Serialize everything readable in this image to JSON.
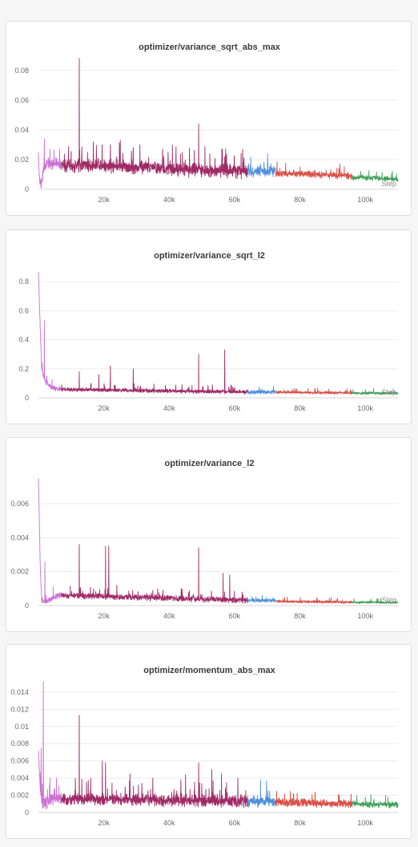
{
  "colors": {
    "run_a": "#cc6fd6",
    "run_b": "#9e2a66",
    "run_c": "#4f8ede",
    "run_d": "#da4f47",
    "run_e": "#3f9f57",
    "grid": "#ececec",
    "axis": "#d4d4d4"
  },
  "chart_data": [
    {
      "type": "line",
      "title": "optimizer/variance_sqrt_abs_max",
      "xlabel": "Step",
      "xlim": [
        0,
        110000
      ],
      "ylim": [
        0,
        0.088
      ],
      "xticks": [
        20000,
        40000,
        60000,
        80000,
        100000
      ],
      "xtick_labels": [
        "20k",
        "40k",
        "60k",
        "80k",
        "100k"
      ],
      "yticks": [
        0,
        0.02,
        0.04,
        0.06,
        0.08
      ],
      "ytick_labels": [
        "0",
        "0.02",
        "0.04",
        "0.06",
        "0.08"
      ],
      "grid": true,
      "series": [
        {
          "color": "#cc6fd6",
          "x_range": [
            0,
            7000
          ],
          "points": [
            [
              0,
              0.024
            ],
            [
              300,
              0.007
            ],
            [
              800,
              0.004
            ],
            [
              1500,
              0.012
            ],
            [
              2500,
              0.018
            ],
            [
              4000,
              0.017
            ],
            [
              6000,
              0.018
            ],
            [
              7000,
              0.016
            ]
          ],
          "base": 0.015,
          "noise": 0.003,
          "spikes": [
            [
              1800,
              0.034
            ],
            [
              3500,
              0.027
            ],
            [
              6500,
              0.027
            ]
          ]
        },
        {
          "color": "#9e2a66",
          "x_range": [
            7000,
            64000
          ],
          "points": [
            [
              7000,
              0.016
            ],
            [
              20000,
              0.016
            ],
            [
              40000,
              0.014
            ],
            [
              64000,
              0.012
            ]
          ],
          "base": 0.015,
          "noise": 0.004,
          "spikes": [
            [
              12500,
              0.088
            ],
            [
              49000,
              0.044
            ],
            [
              22000,
              0.03
            ],
            [
              25000,
              0.033
            ],
            [
              29000,
              0.028
            ],
            [
              31000,
              0.03
            ],
            [
              38000,
              0.027
            ],
            [
              15000,
              0.025
            ],
            [
              44000,
              0.025
            ],
            [
              57000,
              0.022
            ]
          ]
        },
        {
          "color": "#4f8ede",
          "x_range": [
            64000,
            72500
          ],
          "points": [
            [
              64000,
              0.012
            ],
            [
              72500,
              0.012
            ]
          ],
          "base": 0.012,
          "noise": 0.003,
          "spikes": [
            [
              68000,
              0.017
            ]
          ]
        },
        {
          "color": "#da4f47",
          "x_range": [
            72500,
            96000
          ],
          "points": [
            [
              72500,
              0.011
            ],
            [
              96000,
              0.009
            ]
          ],
          "base": 0.01,
          "noise": 0.002,
          "spikes": [
            [
              80000,
              0.015
            ],
            [
              88000,
              0.013
            ]
          ]
        },
        {
          "color": "#3f9f57",
          "x_range": [
            96000,
            110000
          ],
          "points": [
            [
              96000,
              0.008
            ],
            [
              110000,
              0.007
            ]
          ],
          "base": 0.0075,
          "noise": 0.0015,
          "spikes": [
            [
              108000,
              0.01
            ]
          ]
        }
      ]
    },
    {
      "type": "line",
      "title": "optimizer/variance_sqrt_l2",
      "xlabel": "Step",
      "xlim": [
        0,
        110000
      ],
      "ylim": [
        0,
        0.9
      ],
      "xticks": [
        20000,
        40000,
        60000,
        80000,
        100000
      ],
      "xtick_labels": [
        "20k",
        "40k",
        "60k",
        "80k",
        "100k"
      ],
      "yticks": [
        0,
        0.2,
        0.4,
        0.6,
        0.8
      ],
      "ytick_labels": [
        "0",
        "0.2",
        "0.4",
        "0.6",
        "0.8"
      ],
      "grid": true,
      "series": [
        {
          "color": "#cc6fd6",
          "x_range": [
            0,
            7000
          ],
          "points": [
            [
              0,
              0.88
            ],
            [
              500,
              0.5
            ],
            [
              1000,
              0.2
            ],
            [
              2000,
              0.12
            ],
            [
              3500,
              0.08
            ],
            [
              5000,
              0.065
            ],
            [
              7000,
              0.06
            ]
          ],
          "base": 0.06,
          "noise": 0.015,
          "spikes": [
            [
              1800,
              0.53
            ],
            [
              2600,
              0.15
            ]
          ]
        },
        {
          "color": "#9e2a66",
          "x_range": [
            7000,
            64000
          ],
          "points": [
            [
              7000,
              0.058
            ],
            [
              30000,
              0.05
            ],
            [
              64000,
              0.04
            ]
          ],
          "base": 0.05,
          "noise": 0.012,
          "spikes": [
            [
              12500,
              0.18
            ],
            [
              18500,
              0.16
            ],
            [
              22000,
              0.22
            ],
            [
              29000,
              0.2
            ],
            [
              49000,
              0.3
            ],
            [
              57000,
              0.33
            ],
            [
              60000,
              0.07
            ]
          ]
        },
        {
          "color": "#4f8ede",
          "x_range": [
            64000,
            72500
          ],
          "points": [
            [
              64000,
              0.04
            ],
            [
              72500,
              0.04
            ]
          ],
          "base": 0.04,
          "noise": 0.012,
          "spikes": []
        },
        {
          "color": "#da4f47",
          "x_range": [
            72500,
            96000
          ],
          "points": [
            [
              72500,
              0.038
            ],
            [
              96000,
              0.034
            ]
          ],
          "base": 0.036,
          "noise": 0.008,
          "spikes": []
        },
        {
          "color": "#3f9f57",
          "x_range": [
            96000,
            110000
          ],
          "points": [
            [
              96000,
              0.033
            ],
            [
              110000,
              0.032
            ]
          ],
          "base": 0.032,
          "noise": 0.008,
          "spikes": []
        }
      ]
    },
    {
      "type": "line",
      "title": "optimizer/variance_l2",
      "xlabel": "Step",
      "xlim": [
        0,
        110000
      ],
      "ylim": [
        0,
        0.0077
      ],
      "xticks": [
        20000,
        40000,
        60000,
        80000,
        100000
      ],
      "xtick_labels": [
        "20k",
        "40k",
        "60k",
        "80k",
        "100k"
      ],
      "yticks": [
        0,
        0.002,
        0.004,
        0.006
      ],
      "ytick_labels": [
        "0",
        "0.002",
        "0.004",
        "0.006"
      ],
      "grid": true,
      "series": [
        {
          "color": "#cc6fd6",
          "x_range": [
            0,
            7000
          ],
          "points": [
            [
              0,
              0.0075
            ],
            [
              600,
              0.002
            ],
            [
              1000,
              0.0003
            ],
            [
              2000,
              0.0002
            ],
            [
              3500,
              0.0004
            ],
            [
              5000,
              0.0005
            ],
            [
              7000,
              0.0006
            ]
          ],
          "base": 0.0005,
          "noise": 0.00015,
          "spikes": [
            [
              2000,
              0.0026
            ],
            [
              4500,
              0.0011
            ]
          ]
        },
        {
          "color": "#9e2a66",
          "x_range": [
            7000,
            64000
          ],
          "points": [
            [
              7000,
              0.0006
            ],
            [
              30000,
              0.0005
            ],
            [
              64000,
              0.0003
            ]
          ],
          "base": 0.0005,
          "noise": 0.00015,
          "spikes": [
            [
              12500,
              0.0036
            ],
            [
              20500,
              0.0035
            ],
            [
              21500,
              0.0035
            ],
            [
              49000,
              0.0034
            ],
            [
              56500,
              0.0019
            ],
            [
              58500,
              0.0018
            ],
            [
              24000,
              0.0012
            ],
            [
              35000,
              0.0009
            ]
          ]
        },
        {
          "color": "#4f8ede",
          "x_range": [
            64000,
            72500
          ],
          "points": [
            [
              64000,
              0.0003
            ],
            [
              72500,
              0.0003
            ]
          ],
          "base": 0.0003,
          "noise": 0.0001,
          "spikes": []
        },
        {
          "color": "#da4f47",
          "x_range": [
            72500,
            96000
          ],
          "points": [
            [
              72500,
              0.00025
            ],
            [
              96000,
              0.0002
            ]
          ],
          "base": 0.00022,
          "noise": 7e-05,
          "spikes": []
        },
        {
          "color": "#3f9f57",
          "x_range": [
            96000,
            110000
          ],
          "points": [
            [
              96000,
              0.0002
            ],
            [
              110000,
              0.00018
            ]
          ],
          "base": 0.00019,
          "noise": 6e-05,
          "spikes": []
        }
      ]
    },
    {
      "type": "line",
      "title": "optimizer/momentum_abs_max",
      "xlabel": "",
      "xlim": [
        0,
        110000
      ],
      "ylim": [
        0,
        0.0152
      ],
      "xticks": [
        20000,
        40000,
        60000,
        80000,
        100000
      ],
      "xtick_labels": [
        "20k",
        "40k",
        "60k",
        "80k",
        "100k"
      ],
      "yticks": [
        0,
        0.002,
        0.004,
        0.006,
        0.008,
        0.01,
        0.012,
        0.014
      ],
      "ytick_labels": [
        "0",
        "0.002",
        "0.004",
        "0.006",
        "0.008",
        "0.01",
        "0.012",
        "0.014"
      ],
      "grid": true,
      "series": [
        {
          "color": "#cc6fd6",
          "x_range": [
            0,
            7000
          ],
          "points": [
            [
              0,
              0.007
            ],
            [
              500,
              0.003
            ],
            [
              1200,
              0.001
            ],
            [
              2500,
              0.0012
            ],
            [
              4000,
              0.0016
            ],
            [
              7000,
              0.0017
            ]
          ],
          "base": 0.0015,
          "noise": 0.0006,
          "spikes": [
            [
              1500,
              0.0152
            ],
            [
              800,
              0.0075
            ],
            [
              3500,
              0.004
            ],
            [
              5500,
              0.004
            ]
          ]
        },
        {
          "color": "#9e2a66",
          "x_range": [
            7000,
            64000
          ],
          "points": [
            [
              7000,
              0.0016
            ],
            [
              30000,
              0.0015
            ],
            [
              64000,
              0.0013
            ]
          ],
          "base": 0.0014,
          "noise": 0.0006,
          "spikes": [
            [
              12500,
              0.0113
            ],
            [
              16000,
              0.004
            ],
            [
              19500,
              0.006
            ],
            [
              20500,
              0.0058
            ],
            [
              28000,
              0.0045
            ],
            [
              35000,
              0.004
            ],
            [
              45000,
              0.0044
            ],
            [
              49000,
              0.0058
            ],
            [
              53000,
              0.005
            ],
            [
              56000,
              0.0045
            ],
            [
              61000,
              0.004
            ]
          ]
        },
        {
          "color": "#4f8ede",
          "x_range": [
            64000,
            72500
          ],
          "points": [
            [
              64000,
              0.0013
            ],
            [
              72500,
              0.0013
            ]
          ],
          "base": 0.0013,
          "noise": 0.0006,
          "spikes": [
            [
              68000,
              0.0038
            ]
          ]
        },
        {
          "color": "#da4f47",
          "x_range": [
            72500,
            96000
          ],
          "points": [
            [
              72500,
              0.0012
            ],
            [
              96000,
              0.001
            ]
          ],
          "base": 0.0011,
          "noise": 0.0004,
          "spikes": [
            [
              78000,
              0.0022
            ],
            [
              92000,
              0.002
            ]
          ]
        },
        {
          "color": "#3f9f57",
          "x_range": [
            96000,
            110000
          ],
          "points": [
            [
              96000,
              0.001
            ],
            [
              110000,
              0.0009
            ]
          ],
          "base": 0.0009,
          "noise": 0.0003,
          "spikes": [
            [
              100000,
              0.0018
            ]
          ]
        }
      ]
    }
  ]
}
